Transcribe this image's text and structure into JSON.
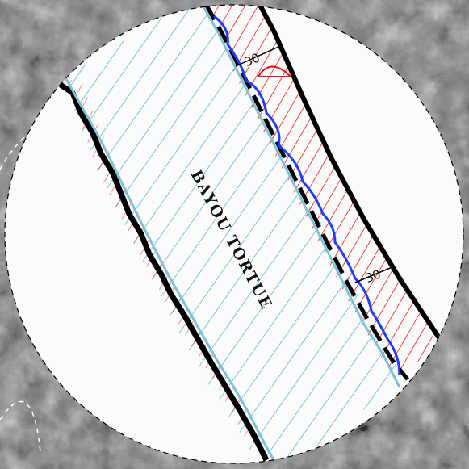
{
  "map": {
    "waterbody_label": "BAYOU  TORTUE",
    "dimension_labels": [
      "30",
      "30"
    ],
    "colors": {
      "background_texture": "#7a7a7a",
      "viewport_fill": "#fbfbfb",
      "water_hatch": "#7cc3d8",
      "easement_hatch": "#ee1111",
      "water_line": "#1f3dff",
      "boundary": "#000000"
    }
  }
}
